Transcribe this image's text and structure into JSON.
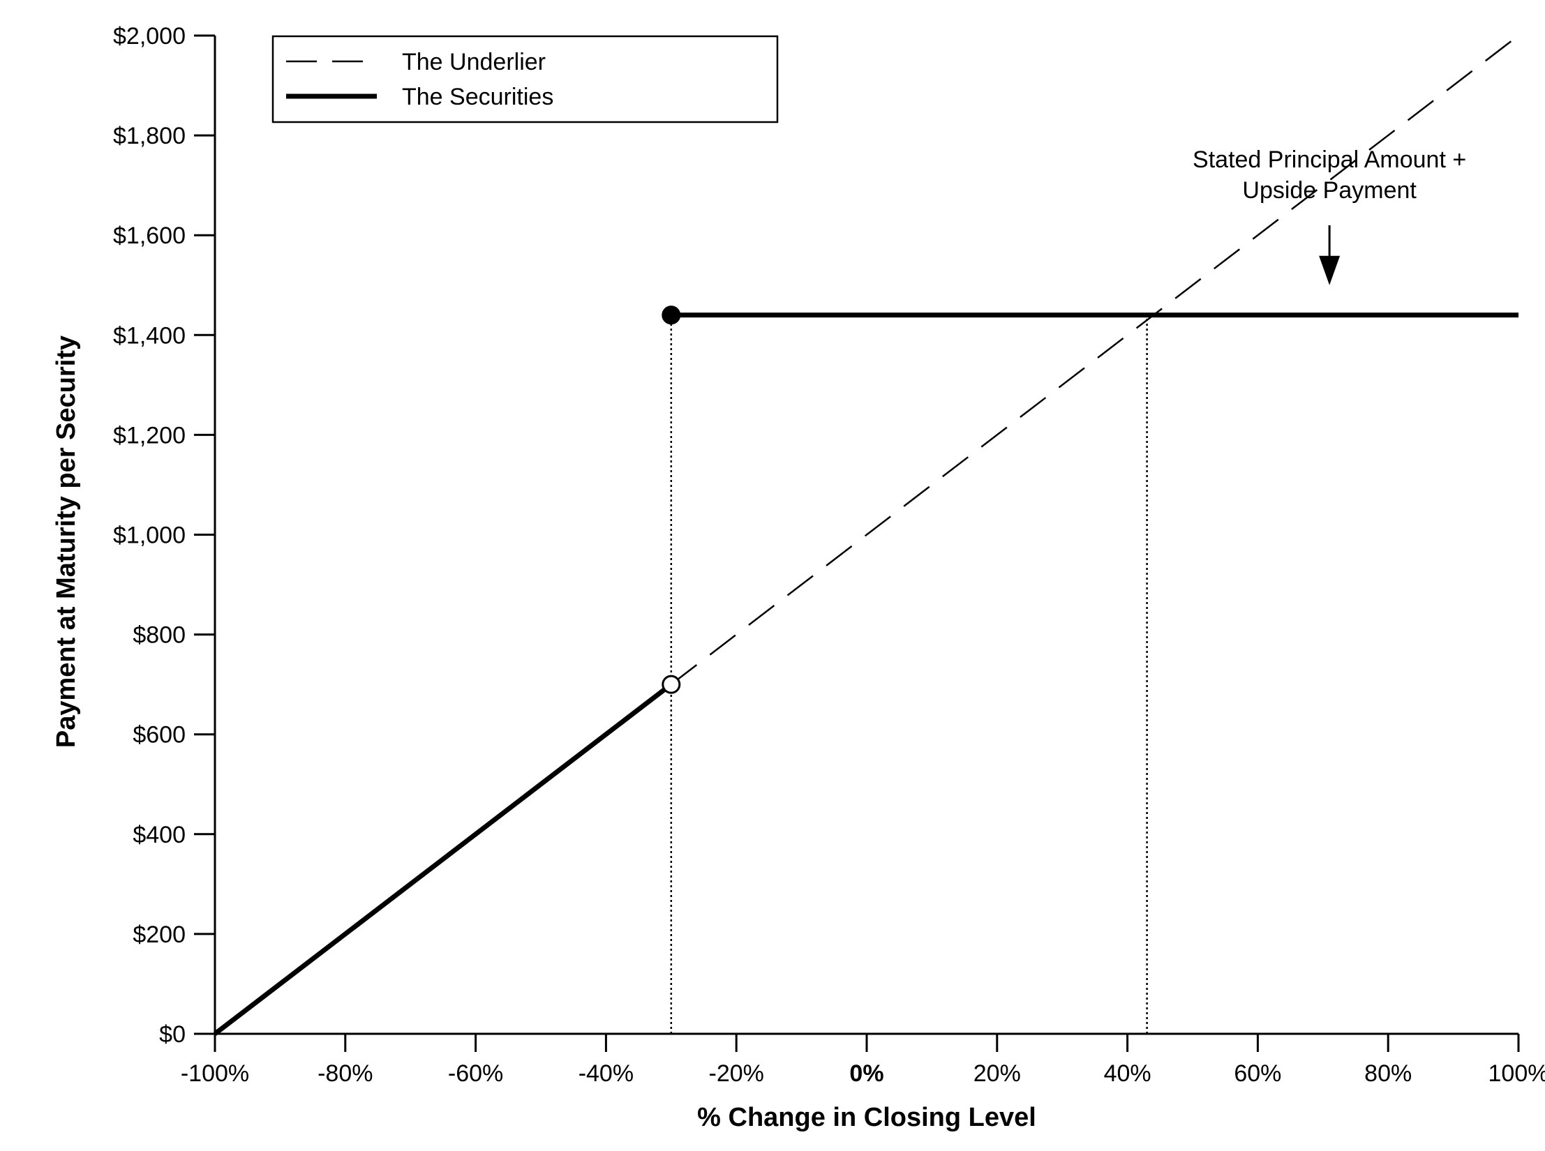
{
  "chart_data": {
    "type": "line",
    "title": "",
    "xlabel": "% Change in Closing Level",
    "ylabel": "Payment at Maturity per Security",
    "xlim": [
      -100,
      100
    ],
    "ylim": [
      0,
      2000
    ],
    "x_ticks": [
      -100,
      -80,
      -60,
      -40,
      -20,
      0,
      20,
      40,
      60,
      80,
      100
    ],
    "x_tick_labels": [
      "-100%",
      "-80%",
      "-60%",
      "-40%",
      "-20%",
      "0%",
      "20%",
      "40%",
      "60%",
      "80%",
      "100%"
    ],
    "y_ticks": [
      0,
      200,
      400,
      600,
      800,
      1000,
      1200,
      1400,
      1600,
      1800,
      2000
    ],
    "y_tick_labels": [
      "$0",
      "$200",
      "$400",
      "$600",
      "$800",
      "$1,000",
      "$1,200",
      "$1,400",
      "$1,600",
      "$1,800",
      "$2,000"
    ],
    "grid": false,
    "legend_position": "top-left",
    "series": [
      {
        "name": "The Underlier",
        "style": "dashed",
        "color": "#000000",
        "points": [
          [
            -30,
            700
          ],
          [
            100,
            2000
          ]
        ]
      },
      {
        "name": "The Securities",
        "style": "solid-thick",
        "color": "#000000",
        "segments": [
          [
            [
              -100,
              0
            ],
            [
              -30,
              700
            ]
          ],
          [
            [
              -30,
              1440
            ],
            [
              100,
              1440
            ]
          ]
        ]
      }
    ],
    "markers": [
      {
        "x": -30,
        "y": 1440,
        "fill": "filled"
      },
      {
        "x": -30,
        "y": 700,
        "fill": "open"
      }
    ],
    "reference_lines": [
      {
        "x": -30,
        "y_from": 0,
        "y_to": 1440,
        "style": "dotted"
      },
      {
        "x": 43,
        "y_from": 0,
        "y_to": 1440,
        "style": "dotted"
      }
    ],
    "annotation": {
      "lines": [
        "Stated Principal Amount +",
        "Upside Payment"
      ],
      "arrow_x": 71,
      "arrow_from_y": 1620,
      "arrow_to_y": 1500
    }
  }
}
